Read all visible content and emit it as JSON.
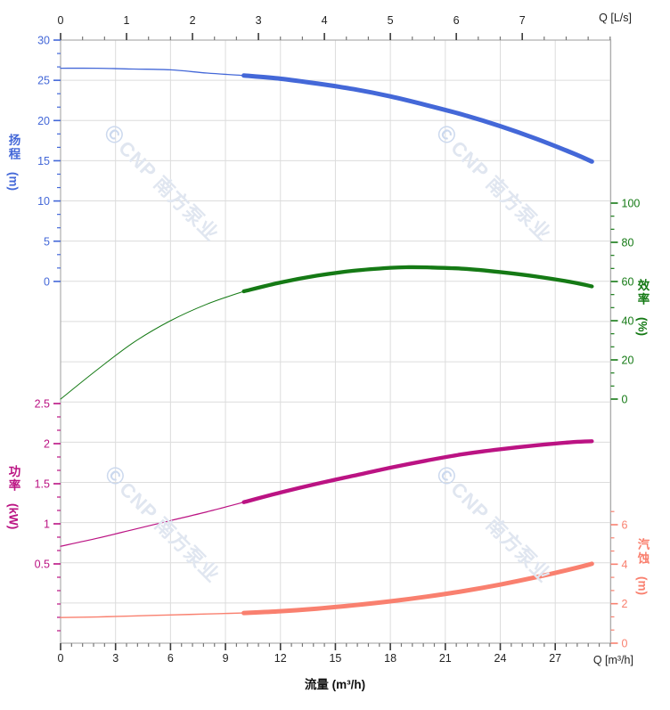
{
  "watermark": {
    "symbol": "©",
    "text": "CNP 南方泵业"
  },
  "chart_data": {
    "type": "line",
    "title": "",
    "grid": true,
    "x_axis_bottom": {
      "title": "流量 (m³/h)",
      "unit": "Q [m³/h]",
      "ticks": [
        0,
        3,
        6,
        9,
        12,
        15,
        18,
        21,
        24,
        27
      ],
      "range": [
        0,
        30.03
      ],
      "minor_step": 0.6
    },
    "x_axis_top": {
      "unit": "Q [L/s]",
      "ticks": [
        0,
        1,
        2,
        3,
        4,
        5,
        6,
        7
      ],
      "range": [
        0,
        8.342
      ],
      "minor_step": 0.3333,
      "lps_to_m3h": 3.6
    },
    "y_axes": [
      {
        "id": "head",
        "title_cjk": "扬程",
        "title_unit": "(m)",
        "side": "left",
        "color": "#4468d8",
        "ticks": [
          30,
          25,
          20,
          15,
          10,
          5,
          0
        ],
        "range": [
          0,
          30
        ],
        "minor_step": 1.6667,
        "minor_range": [
          0,
          30
        ]
      },
      {
        "id": "power",
        "title_cjk": "功率",
        "title_unit": "(kW)",
        "side": "left",
        "color": "#bb1383",
        "ticks": [
          2.5,
          2,
          1.5,
          1,
          0.5
        ],
        "range": [
          0.5,
          2.5
        ],
        "minor_step": 0.16667,
        "minor_range": [
          -0.3333,
          2.5
        ]
      },
      {
        "id": "eff",
        "title_cjk": "效率",
        "title_unit": "(%)",
        "side": "right",
        "color": "#157a15",
        "ticks": [
          100,
          80,
          60,
          40,
          20,
          0
        ],
        "range": [
          0,
          100
        ],
        "minor_step": 6.6667,
        "minor_range": [
          0,
          100
        ]
      },
      {
        "id": "npsh",
        "title_cjk": "汽蚀",
        "title_unit": "(m)",
        "side": "right",
        "color": "#f9806f",
        "ticks": [
          6,
          4,
          2,
          0
        ],
        "range": [
          0,
          6
        ],
        "minor_step": 0.6667,
        "minor_range": [
          0,
          6.667
        ]
      }
    ],
    "series": [
      {
        "id": "head",
        "name": "扬程",
        "axis": "head",
        "color": "#4468d8",
        "bold_from": 10,
        "points": [
          [
            0,
            26.5
          ],
          [
            2,
            26.5
          ],
          [
            4,
            26.4
          ],
          [
            6,
            26.3
          ],
          [
            8,
            25.9
          ],
          [
            10,
            25.6
          ],
          [
            12,
            25.2
          ],
          [
            14,
            24.6
          ],
          [
            16,
            23.9
          ],
          [
            18,
            23.0
          ],
          [
            20,
            21.9
          ],
          [
            22,
            20.7
          ],
          [
            24,
            19.3
          ],
          [
            26,
            17.7
          ],
          [
            28,
            15.9
          ],
          [
            29,
            14.9
          ]
        ]
      },
      {
        "id": "eff",
        "name": "效率",
        "axis": "eff",
        "color": "#157a15",
        "bold_from": 10,
        "points": [
          [
            0,
            0
          ],
          [
            2,
            15
          ],
          [
            4,
            29
          ],
          [
            6,
            40
          ],
          [
            8,
            48.5
          ],
          [
            10,
            55
          ],
          [
            12,
            59.5
          ],
          [
            14,
            63
          ],
          [
            16,
            65.5
          ],
          [
            18,
            67
          ],
          [
            19,
            67.3
          ],
          [
            20,
            67.2
          ],
          [
            22,
            66.5
          ],
          [
            24,
            64.8
          ],
          [
            26,
            62.5
          ],
          [
            28,
            59.5
          ],
          [
            29,
            57.5
          ]
        ]
      },
      {
        "id": "power",
        "name": "功率",
        "axis": "power",
        "color": "#bb1383",
        "bold_from": 10,
        "points": [
          [
            0,
            0.72
          ],
          [
            2,
            0.82
          ],
          [
            4,
            0.93
          ],
          [
            6,
            1.04
          ],
          [
            8,
            1.15
          ],
          [
            10,
            1.27
          ],
          [
            12,
            1.39
          ],
          [
            14,
            1.5
          ],
          [
            16,
            1.6
          ],
          [
            18,
            1.7
          ],
          [
            20,
            1.79
          ],
          [
            22,
            1.87
          ],
          [
            24,
            1.93
          ],
          [
            26,
            1.98
          ],
          [
            28,
            2.02
          ],
          [
            29,
            2.03
          ]
        ]
      },
      {
        "id": "npsh",
        "name": "汽蚀(NPSH)",
        "axis": "npsh",
        "color": "#f9806f",
        "bold_from": 10,
        "points": [
          [
            0,
            1.3
          ],
          [
            2,
            1.33
          ],
          [
            4,
            1.38
          ],
          [
            6,
            1.43
          ],
          [
            8,
            1.48
          ],
          [
            10,
            1.53
          ],
          [
            12,
            1.62
          ],
          [
            14,
            1.75
          ],
          [
            16,
            1.92
          ],
          [
            18,
            2.12
          ],
          [
            20,
            2.36
          ],
          [
            22,
            2.64
          ],
          [
            24,
            2.97
          ],
          [
            26,
            3.35
          ],
          [
            28,
            3.78
          ],
          [
            29,
            4.02
          ]
        ]
      }
    ]
  }
}
